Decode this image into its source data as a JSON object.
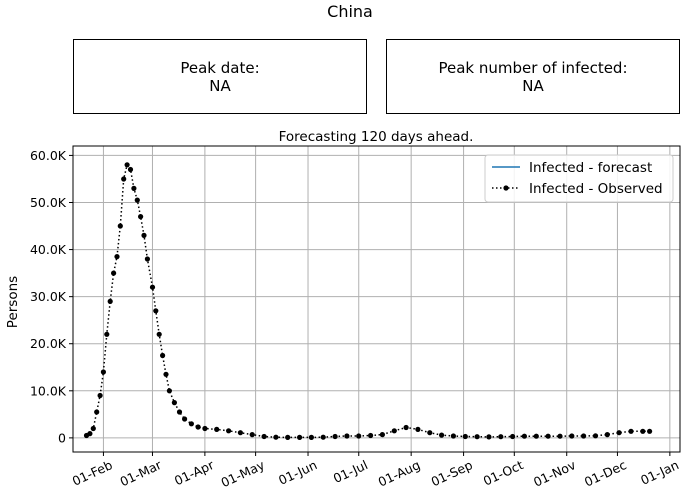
{
  "title": "China",
  "boxes": {
    "peak_date": {
      "label": "Peak date:",
      "value": "NA"
    },
    "peak_infected": {
      "label": "Peak number of infected:",
      "value": "NA"
    }
  },
  "chart_data": {
    "type": "line",
    "title": "Forecasting 120 days ahead.",
    "xlabel": "",
    "ylabel": "Persons",
    "x_axis": {
      "type": "date",
      "ticks": [
        "01-Feb",
        "01-Mar",
        "01-Apr",
        "01-May",
        "01-Jun",
        "01-Jul",
        "01-Aug",
        "01-Sep",
        "01-Oct",
        "01-Nov",
        "01-Dec",
        "01-Jan"
      ]
    },
    "y_axis": {
      "ticks": [
        0,
        10000,
        20000,
        30000,
        40000,
        50000,
        60000
      ],
      "tick_labels": [
        "0",
        "10.0K",
        "20.0K",
        "30.0K",
        "40.0K",
        "50.0K",
        "60.0K"
      ],
      "range": [
        -3000,
        62000
      ]
    },
    "grid": true,
    "legend": {
      "placement": "top-right",
      "entries": [
        "Infected - forecast",
        "Infected - Observed"
      ]
    },
    "series": [
      {
        "name": "Infected - forecast",
        "color": "#1f77b4",
        "style": "solid",
        "points": []
      },
      {
        "name": "Infected - Observed",
        "color": "#000000",
        "style": "dotted-with-markers",
        "points": [
          [
            "2020-01-22",
            500
          ],
          [
            "2020-01-24",
            900
          ],
          [
            "2020-01-26",
            2000
          ],
          [
            "2020-01-28",
            5500
          ],
          [
            "2020-01-30",
            9000
          ],
          [
            "2020-02-01",
            14000
          ],
          [
            "2020-02-03",
            22000
          ],
          [
            "2020-02-05",
            29000
          ],
          [
            "2020-02-07",
            35000
          ],
          [
            "2020-02-09",
            38500
          ],
          [
            "2020-02-11",
            45000
          ],
          [
            "2020-02-13",
            55000
          ],
          [
            "2020-02-15",
            58000
          ],
          [
            "2020-02-17",
            57000
          ],
          [
            "2020-02-19",
            53000
          ],
          [
            "2020-02-21",
            50500
          ],
          [
            "2020-02-23",
            47000
          ],
          [
            "2020-02-25",
            43000
          ],
          [
            "2020-02-27",
            38000
          ],
          [
            "2020-03-01",
            32000
          ],
          [
            "2020-03-03",
            27000
          ],
          [
            "2020-03-05",
            22000
          ],
          [
            "2020-03-07",
            17500
          ],
          [
            "2020-03-09",
            13500
          ],
          [
            "2020-03-11",
            10000
          ],
          [
            "2020-03-14",
            7500
          ],
          [
            "2020-03-17",
            5500
          ],
          [
            "2020-03-20",
            4000
          ],
          [
            "2020-03-24",
            3000
          ],
          [
            "2020-03-28",
            2300
          ],
          [
            "2020-04-01",
            2000
          ],
          [
            "2020-04-08",
            1800
          ],
          [
            "2020-04-15",
            1500
          ],
          [
            "2020-04-22",
            1100
          ],
          [
            "2020-04-29",
            700
          ],
          [
            "2020-05-06",
            300
          ],
          [
            "2020-05-13",
            150
          ],
          [
            "2020-05-20",
            100
          ],
          [
            "2020-05-27",
            100
          ],
          [
            "2020-06-03",
            100
          ],
          [
            "2020-06-10",
            150
          ],
          [
            "2020-06-17",
            300
          ],
          [
            "2020-06-24",
            400
          ],
          [
            "2020-07-01",
            400
          ],
          [
            "2020-07-08",
            500
          ],
          [
            "2020-07-15",
            700
          ],
          [
            "2020-07-22",
            1500
          ],
          [
            "2020-07-29",
            2200
          ],
          [
            "2020-08-05",
            1800
          ],
          [
            "2020-08-12",
            1100
          ],
          [
            "2020-08-19",
            600
          ],
          [
            "2020-08-26",
            400
          ],
          [
            "2020-09-02",
            300
          ],
          [
            "2020-09-09",
            250
          ],
          [
            "2020-09-16",
            200
          ],
          [
            "2020-09-23",
            250
          ],
          [
            "2020-09-30",
            300
          ],
          [
            "2020-10-07",
            350
          ],
          [
            "2020-10-14",
            350
          ],
          [
            "2020-10-21",
            350
          ],
          [
            "2020-10-28",
            350
          ],
          [
            "2020-11-04",
            400
          ],
          [
            "2020-11-11",
            400
          ],
          [
            "2020-11-18",
            450
          ],
          [
            "2020-11-25",
            700
          ],
          [
            "2020-12-02",
            1100
          ],
          [
            "2020-12-09",
            1400
          ],
          [
            "2020-12-16",
            1400
          ],
          [
            "2020-12-20",
            1400
          ]
        ]
      }
    ]
  }
}
